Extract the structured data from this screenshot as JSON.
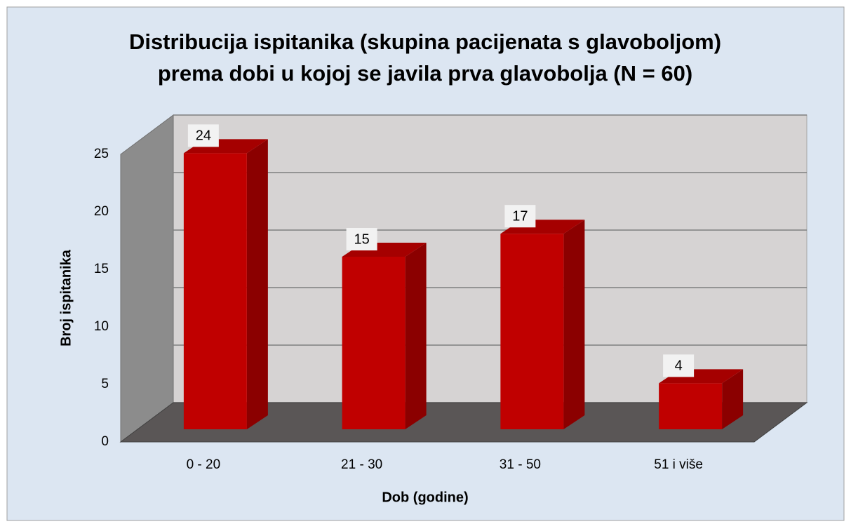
{
  "chart_data": {
    "type": "bar3d",
    "title": [
      "Distribucija ispitanika (skupina pacijenata s glavoboljom)",
      "prema dobi u kojoj se javila prva glavobolja (N = 60)"
    ],
    "xlabel": "Dob (godine)",
    "ylabel": "Broj ispitanika",
    "categories": [
      "0 - 20",
      "21 - 30",
      "31 - 50",
      "51 i više"
    ],
    "values": [
      24,
      15,
      17,
      4
    ],
    "color": "#c00000",
    "ylim": [
      0,
      25
    ],
    "yticks": [
      0,
      5,
      10,
      15,
      20,
      25
    ],
    "grid": true
  }
}
